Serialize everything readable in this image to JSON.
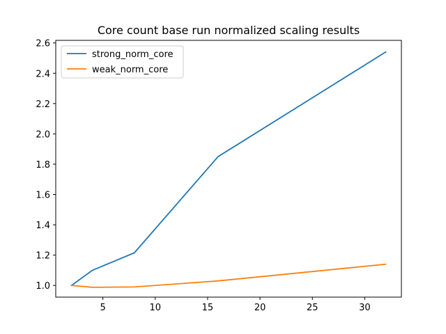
{
  "chart_data": {
    "type": "line",
    "title": "Core count base run normalized scaling results",
    "xlabel": "",
    "ylabel": "",
    "x": [
      2,
      4,
      8,
      16,
      32
    ],
    "series": [
      {
        "name": "strong_norm_core",
        "color": "#1f77b4",
        "values": [
          1.0,
          1.1,
          1.215,
          1.85,
          2.54
        ]
      },
      {
        "name": "weak_norm_core",
        "color": "#ff7f0e",
        "values": [
          1.0,
          0.988,
          0.99,
          1.03,
          1.14
        ]
      }
    ],
    "xlim": [
      0.5,
      33.5
    ],
    "ylim": [
      0.923,
      2.617
    ],
    "xticks": [
      5,
      10,
      15,
      20,
      25,
      30
    ],
    "xtick_labels": [
      "5",
      "10",
      "15",
      "20",
      "25",
      "30"
    ],
    "yticks": [
      1.0,
      1.2,
      1.4,
      1.6,
      1.8,
      2.0,
      2.2,
      2.4,
      2.6
    ],
    "ytick_labels": [
      "1.0",
      "1.2",
      "1.4",
      "1.6",
      "1.8",
      "2.0",
      "2.2",
      "2.4",
      "2.6"
    ],
    "grid": false,
    "legend_position": "top-left"
  }
}
